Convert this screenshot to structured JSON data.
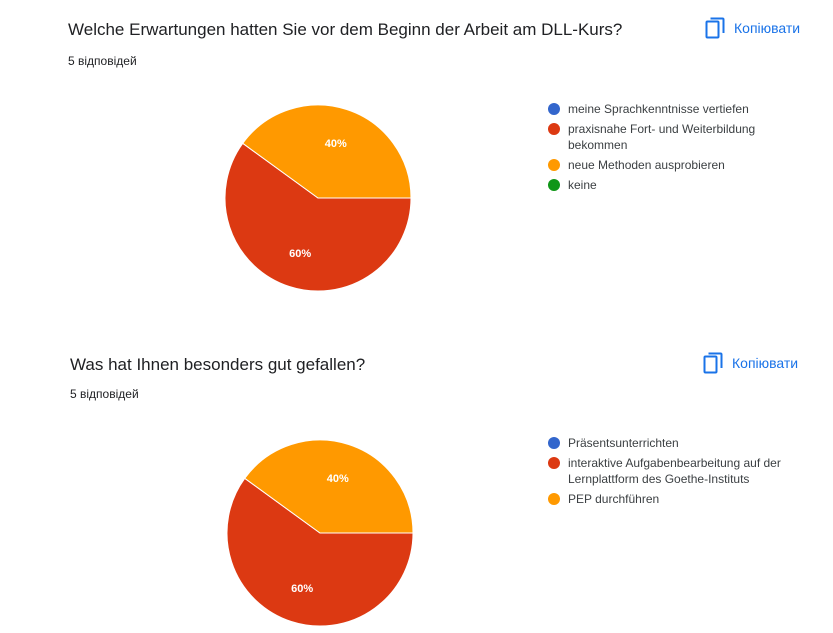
{
  "colors": {
    "blue": "#3366cc",
    "red": "#dc3912",
    "orange": "#ff9900",
    "green": "#109618",
    "link": "#1a73e8"
  },
  "copy_label": "Копіювати",
  "copy_icon": "copy-icon",
  "chart_data": [
    {
      "type": "pie",
      "title": "Welche Erwartungen hatten Sie vor dem Beginn der Arbeit am DLL-Kurs?",
      "subtitle": "5 відповідей",
      "legend_position": "right",
      "categories": [
        "meine Sprachkenntnisse vertiefen",
        "praxisnahe Fort- und Weiterbildung bekommen",
        "neue Methoden ausprobieren",
        "keine"
      ],
      "category_colors": [
        "#3366cc",
        "#dc3912",
        "#ff9900",
        "#109618"
      ],
      "values": [
        0,
        60,
        40,
        0
      ],
      "slice_labels": [
        "",
        "60%",
        "40%",
        ""
      ]
    },
    {
      "type": "pie",
      "title": "Was hat Ihnen besonders gut gefallen?",
      "subtitle": "5 відповідей",
      "legend_position": "right",
      "categories": [
        "Präsentsunterrichten",
        "interaktive Aufgabenbearbeitung auf der Lernplattform des Goethe-Instituts",
        "PEP durchführen"
      ],
      "category_colors": [
        "#3366cc",
        "#dc3912",
        "#ff9900"
      ],
      "values": [
        0,
        60,
        40
      ],
      "slice_labels": [
        "",
        "60%",
        "40%"
      ]
    }
  ]
}
